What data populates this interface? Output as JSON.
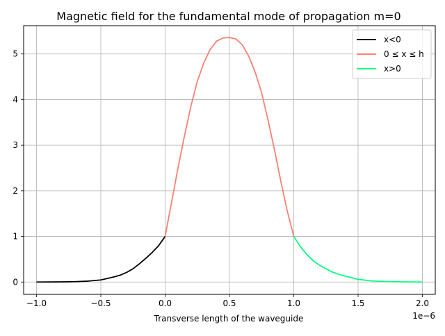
{
  "chart_data": {
    "type": "line",
    "title": "Magnetic field for the fundamental mode of propagation m=0",
    "xlabel": "Transverse length of the waveguide",
    "ylabel": "",
    "x_offset_label": "1e−6",
    "xlim": [
      -1.1e-06,
      2.1e-06
    ],
    "ylim": [
      -0.27,
      5.62
    ],
    "x_ticks": [
      -1.0,
      -0.5,
      0.0,
      0.5,
      1.0,
      1.5,
      2.0
    ],
    "x_tick_labels": [
      "−1.0",
      "−0.5",
      "0.0",
      "0.5",
      "1.0",
      "1.5",
      "2.0"
    ],
    "y_ticks": [
      0,
      1,
      2,
      3,
      4,
      5
    ],
    "y_tick_labels": [
      "0",
      "1",
      "2",
      "3",
      "4",
      "5"
    ],
    "grid": true,
    "legend_position": "top-right",
    "series": [
      {
        "name": "x<0",
        "color": "#000000",
        "x": [
          -1e-06,
          -9e-07,
          -8e-07,
          -7e-07,
          -6e-07,
          -5e-07,
          -4e-07,
          -3.5e-07,
          -3e-07,
          -2.5e-07,
          -2e-07,
          -1.5e-07,
          -1e-07,
          -5e-08,
          0.0
        ],
        "y": [
          0.0,
          0.001,
          0.003,
          0.008,
          0.02,
          0.046,
          0.11,
          0.15,
          0.21,
          0.29,
          0.4,
          0.52,
          0.65,
          0.8,
          1.0
        ]
      },
      {
        "name": "0 ≤ x ≤ h",
        "color": "#fa8072",
        "x": [
          0.0,
          5e-08,
          1e-07,
          1.5e-07,
          2e-07,
          2.5e-07,
          3e-07,
          3.5e-07,
          4e-07,
          4.5e-07,
          5e-07,
          5.5e-07,
          6e-07,
          6.5e-07,
          7e-07,
          7.5e-07,
          8e-07,
          8.5e-07,
          9e-07,
          9.5e-07,
          1e-06
        ],
        "y": [
          1.0,
          1.75,
          2.5,
          3.2,
          3.85,
          4.4,
          4.8,
          5.1,
          5.28,
          5.35,
          5.36,
          5.33,
          5.2,
          4.95,
          4.6,
          4.15,
          3.55,
          2.9,
          2.2,
          1.55,
          1.0
        ]
      },
      {
        "name": "x>0",
        "color": "#00ff7f",
        "x": [
          1e-06,
          1.05e-06,
          1.1e-06,
          1.15e-06,
          1.2e-06,
          1.25e-06,
          1.3e-06,
          1.35e-06,
          1.4e-06,
          1.5e-06,
          1.6e-06,
          1.7e-06,
          1.8e-06,
          1.9e-06,
          2e-06
        ],
        "y": [
          1.0,
          0.78,
          0.61,
          0.47,
          0.37,
          0.29,
          0.22,
          0.17,
          0.13,
          0.06,
          0.025,
          0.012,
          0.006,
          0.002,
          0.0
        ]
      }
    ]
  }
}
